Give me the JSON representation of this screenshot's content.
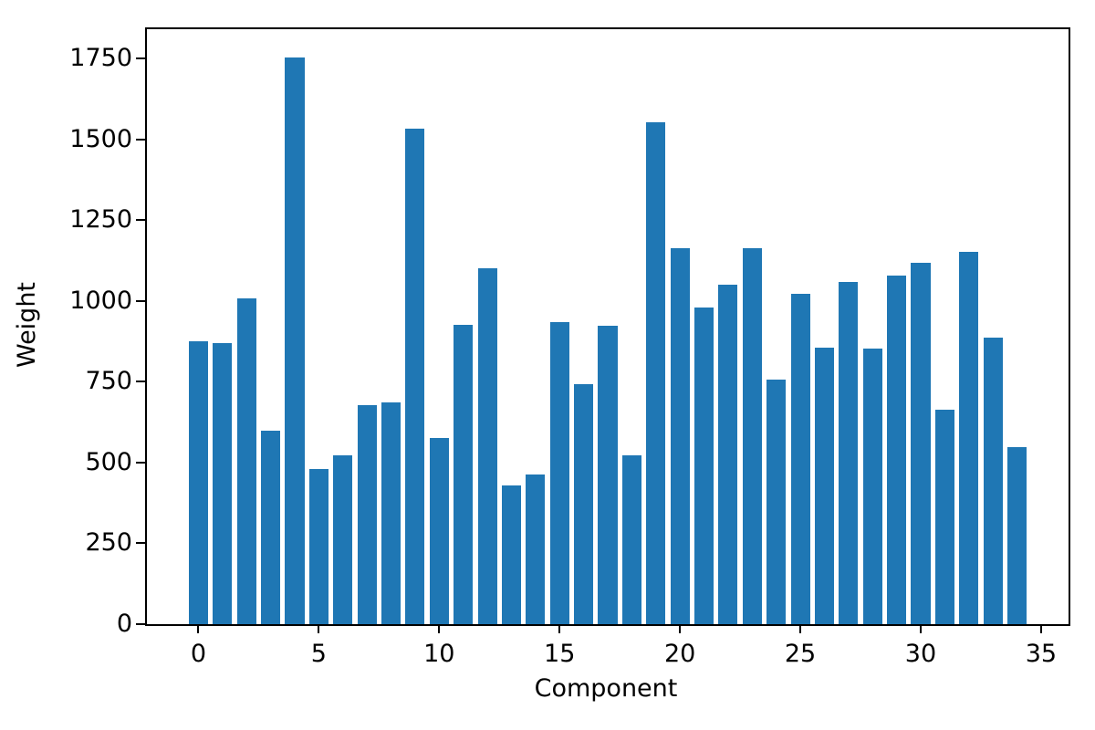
{
  "chart_data": {
    "type": "bar",
    "title": "",
    "xlabel": "Component",
    "ylabel": "Weight",
    "x": [
      0,
      1,
      2,
      3,
      4,
      5,
      6,
      7,
      8,
      9,
      10,
      11,
      12,
      13,
      14,
      15,
      16,
      17,
      18,
      19,
      20,
      21,
      22,
      23,
      24,
      25,
      26,
      27,
      28,
      29,
      30,
      31,
      32,
      33,
      34
    ],
    "values": [
      874,
      871,
      1008,
      598,
      1753,
      481,
      523,
      677,
      686,
      1532,
      577,
      926,
      1102,
      430,
      463,
      936,
      743,
      923,
      522,
      1552,
      1162,
      981,
      1050,
      1162,
      756,
      1023,
      857,
      1058,
      854,
      1080,
      1119,
      664,
      1152,
      888,
      548
    ],
    "bar_width": 0.8,
    "xticks": [
      0,
      5,
      10,
      15,
      20,
      25,
      30,
      35
    ],
    "yticks": [
      0,
      250,
      500,
      750,
      1000,
      1250,
      1500,
      1750
    ],
    "xlim": [
      -2.14,
      36.14
    ],
    "ylim": [
      0,
      1841
    ],
    "grid": false,
    "legend_position": "none",
    "bar_color": "#1f77b4",
    "axis_color": "#000000",
    "background_color": "#ffffff"
  }
}
